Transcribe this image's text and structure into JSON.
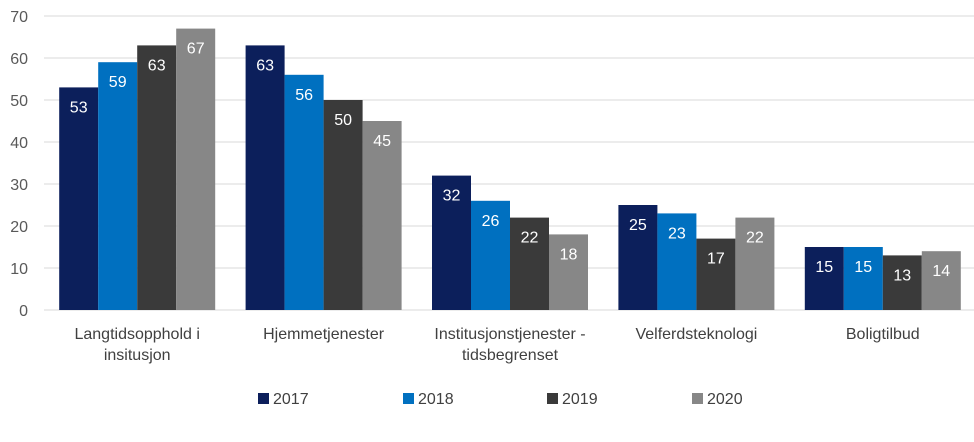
{
  "chart_data": {
    "type": "bar",
    "title": "",
    "xlabel": "",
    "ylabel": "",
    "ylim": [
      0,
      70
    ],
    "yticks": [
      "0",
      "10",
      "20",
      "30",
      "40",
      "50",
      "60",
      "70"
    ],
    "grid": true,
    "legend_position": "bottom",
    "categories": [
      [
        "Langtidsopphold i",
        "insitusjon"
      ],
      [
        "Hjemmetjenester"
      ],
      [
        "Institusjonstjenester -",
        "tidsbegrenset"
      ],
      [
        "Velferdsteknologi"
      ],
      [
        "Boligtilbud"
      ]
    ],
    "series": [
      {
        "name": "2017",
        "color": "#0c1f5b",
        "values": [
          53,
          63,
          32,
          25,
          15
        ],
        "labels": [
          "53",
          "63",
          "32",
          "25",
          "15"
        ]
      },
      {
        "name": "2018",
        "color": "#0070c0",
        "values": [
          59,
          56,
          26,
          23,
          15
        ],
        "labels": [
          "59",
          "56",
          "26",
          "23",
          "15"
        ]
      },
      {
        "name": "2019",
        "color": "#3a3a3a",
        "values": [
          63,
          50,
          22,
          17,
          13
        ],
        "labels": [
          "63",
          "50",
          "22",
          "17",
          "13"
        ]
      },
      {
        "name": "2020",
        "color": "#878787",
        "values": [
          67,
          45,
          18,
          22,
          14
        ],
        "labels": [
          "67",
          "45",
          "18",
          "22",
          "14"
        ]
      }
    ]
  }
}
